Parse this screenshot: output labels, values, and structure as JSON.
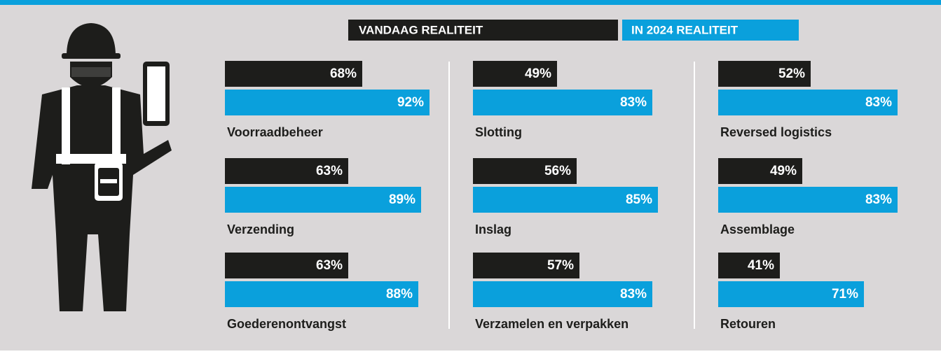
{
  "chart_data": {
    "type": "bar",
    "categories": [
      "Voorraadbeheer",
      "Verzending",
      "Goederenontvangst",
      "Slotting",
      "Inslag",
      "Verzamelen en verpakken",
      "Reversed logistics",
      "Assemblage",
      "Retouren"
    ],
    "series": [
      {
        "name": "VANDAAG REALITEIT",
        "color": "#1d1d1b",
        "values": [
          68,
          63,
          63,
          49,
          56,
          57,
          52,
          49,
          41
        ],
        "value_labels": [
          "68%",
          "63%",
          "63%",
          "49%",
          "56%",
          "57%",
          "52%",
          "49%",
          "41%"
        ]
      },
      {
        "name": "IN 2024 REALITEIT",
        "color": "#0aa0dc",
        "values": [
          92,
          89,
          88,
          83,
          85,
          83,
          83,
          83,
          71
        ],
        "value_labels": [
          "92%",
          "89%",
          "88%",
          "83%",
          "85%",
          "83%",
          "83%",
          "83%",
          "71%"
        ]
      }
    ],
    "xlim": [
      19,
      100
    ]
  }
}
